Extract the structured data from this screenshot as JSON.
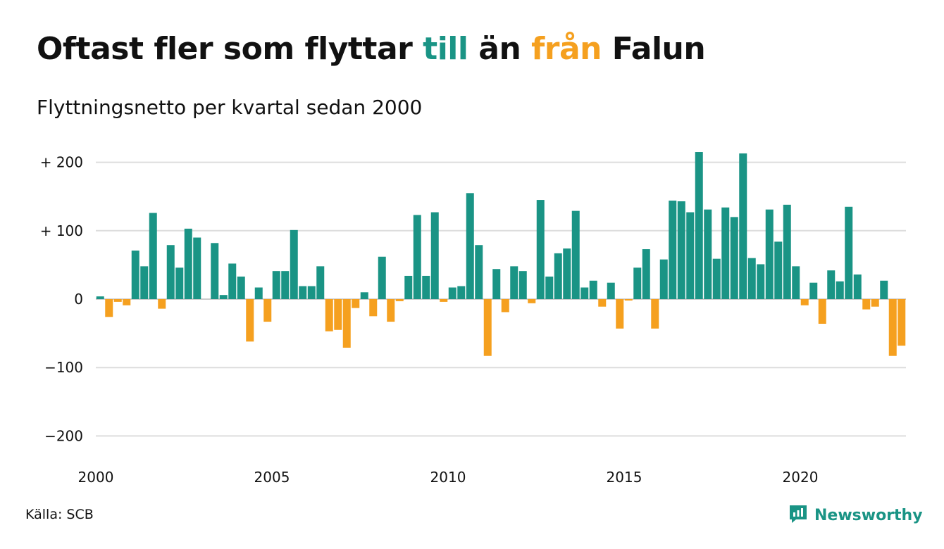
{
  "title": {
    "part1": "Oftast fler som flyttar ",
    "word_to": "till",
    "part2": " än ",
    "word_from": "från",
    "part3": " Falun"
  },
  "subtitle": "Flyttningsnetto per kvartal sedan 2000",
  "source": "Källa: SCB",
  "brand": {
    "name": "Newsworthy",
    "icon": "newsworthy-logo-icon"
  },
  "colors": {
    "positive": "#1a9485",
    "negative": "#f5a01f",
    "gridline": "#dddddd",
    "brand": "#1a9485"
  },
  "chart_data": {
    "type": "bar",
    "title": "Oftast fler som flyttar till än från Falun",
    "subtitle": "Flyttningsnetto per kvartal sedan 2000",
    "xlabel": "",
    "ylabel": "",
    "ylim": [
      -230,
      220
    ],
    "y_ticks": [
      {
        "value": 200,
        "label": "+ 200"
      },
      {
        "value": 100,
        "label": "+ 100"
      },
      {
        "value": 0,
        "label": "0"
      },
      {
        "value": -100,
        "label": "−100"
      },
      {
        "value": -200,
        "label": "−200"
      }
    ],
    "x_ticks": [
      "2000",
      "2005",
      "2010",
      "2015",
      "2020"
    ],
    "start_year": 2000,
    "grid": true,
    "legend": "none",
    "values": [
      4,
      -26,
      -4,
      -9,
      71,
      48,
      126,
      -14,
      79,
      46,
      103,
      90,
      0,
      82,
      6,
      52,
      33,
      -62,
      17,
      -33,
      41,
      41,
      101,
      19,
      19,
      48,
      -47,
      -45,
      -71,
      -13,
      10,
      -25,
      62,
      -33,
      -3,
      34,
      123,
      34,
      127,
      -4,
      17,
      19,
      155,
      79,
      -83,
      44,
      -19,
      48,
      41,
      -6,
      145,
      33,
      67,
      74,
      129,
      17,
      27,
      -11,
      24,
      -43,
      -2,
      46,
      73,
      -43,
      58,
      144,
      143,
      127,
      215,
      131,
      59,
      134,
      120,
      213,
      60,
      51,
      131,
      84,
      138,
      48,
      -9,
      24,
      -36,
      42,
      26,
      135,
      36,
      -15,
      -11,
      27,
      -83,
      -68
    ]
  }
}
